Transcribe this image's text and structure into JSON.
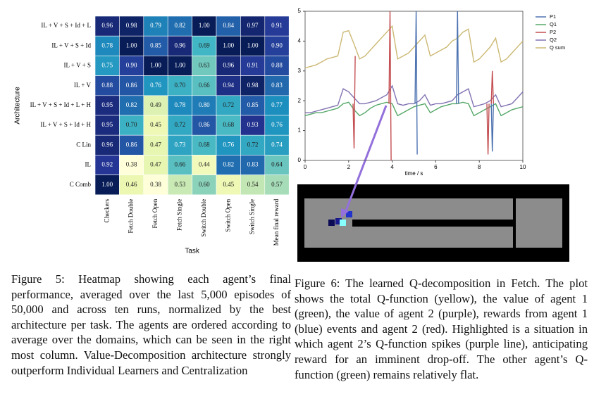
{
  "chart_data": [
    {
      "type": "heatmap",
      "y_label": "Architecture",
      "x_label": "Task",
      "colormap": "YlGnBu",
      "rows": [
        "IL + V + S + Id + L",
        "IL + V + S + Id",
        "IL + V + S",
        "IL + V",
        "IL + V + S + Id + L + H",
        "IL + V + S + Id + H",
        "C Lin",
        "IL",
        "C Comb"
      ],
      "columns": [
        "Checkers",
        "Fetch Double",
        "Fetch Open",
        "Fetch Single",
        "Switch Double",
        "Switch Open",
        "Switch Single",
        "Mean final reward"
      ],
      "values": [
        [
          0.96,
          0.98,
          0.79,
          0.82,
          1.0,
          0.84,
          0.97,
          0.91
        ],
        [
          0.78,
          1.0,
          0.85,
          0.96,
          0.69,
          1.0,
          1.0,
          0.9
        ],
        [
          0.75,
          0.9,
          1.0,
          1.0,
          0.63,
          0.96,
          0.91,
          0.88
        ],
        [
          0.88,
          0.86,
          0.76,
          0.7,
          0.66,
          0.94,
          0.98,
          0.83
        ],
        [
          0.95,
          0.82,
          0.49,
          0.78,
          0.8,
          0.72,
          0.85,
          0.77
        ],
        [
          0.95,
          0.7,
          0.45,
          0.72,
          0.86,
          0.68,
          0.93,
          0.76
        ],
        [
          0.96,
          0.86,
          0.47,
          0.73,
          0.68,
          0.76,
          0.72,
          0.74
        ],
        [
          0.92,
          0.38,
          0.47,
          0.66,
          0.44,
          0.82,
          0.83,
          0.64
        ],
        [
          1.0,
          0.46,
          0.38,
          0.53,
          0.6,
          0.45,
          0.54,
          0.57
        ]
      ],
      "value_labels": [
        [
          "0.96",
          "0.98",
          "0.79",
          "0.82",
          "1.00",
          "0.84",
          "0.97",
          "0.91"
        ],
        [
          "0.78",
          "1.00",
          "0.85",
          "0.96",
          "0.69",
          "1.00",
          "1.00",
          "0.90"
        ],
        [
          "0.75",
          "0.90",
          "1.00",
          "1.00",
          "0.63",
          "0.96",
          "0.91",
          "0.88"
        ],
        [
          "0.88",
          "0.86",
          "0.76",
          "0.70",
          "0.66",
          "0.94",
          "0.98",
          "0.83"
        ],
        [
          "0.95",
          "0.82",
          "0.49",
          "0.78",
          "0.80",
          "0.72",
          "0.85",
          "0.77"
        ],
        [
          "0.95",
          "0.70",
          "0.45",
          "0.72",
          "0.86",
          "0.68",
          "0.93",
          "0.76"
        ],
        [
          "0.96",
          "0.86",
          "0.47",
          "0.73",
          "0.68",
          "0.76",
          "0.72",
          "0.74"
        ],
        [
          "0.92",
          "0.38",
          "0.47",
          "0.66",
          "0.44",
          "0.82",
          "0.83",
          "0.64"
        ],
        [
          "1.00",
          "0.46",
          "0.38",
          "0.53",
          "0.60",
          "0.45",
          "0.54",
          "0.57"
        ]
      ]
    },
    {
      "type": "line",
      "x_label": "time / s",
      "xlim": [
        0,
        10
      ],
      "xticks": [
        0,
        2,
        4,
        6,
        8,
        10
      ],
      "ylim": [
        0,
        5
      ],
      "yticks": [
        0,
        1,
        2,
        3,
        4,
        5
      ],
      "series": [
        {
          "name": "P1",
          "color": "#4c72b0",
          "x": [
            5.05,
            5.1,
            5.15,
            5.2,
            6.95,
            7,
            7.05,
            7.1,
            8.55,
            8.6,
            8.65
          ],
          "values": [
            1.9,
            5,
            0.2,
            null,
            1.9,
            5,
            1.9,
            null,
            1.9,
            0.3,
            1.9
          ]
        },
        {
          "name": "Q1",
          "color": "#55a868",
          "x": [
            0,
            0.25,
            0.5,
            0.75,
            1,
            1.25,
            1.5,
            1.75,
            2,
            2.25,
            2.5,
            2.75,
            3,
            3.25,
            3.5,
            3.75,
            4,
            4.25,
            4.5,
            4.75,
            5,
            5.25,
            5.5,
            5.75,
            6,
            6.25,
            6.5,
            6.75,
            7,
            7.25,
            7.5,
            7.75,
            8,
            8.25,
            8.5,
            8.75,
            9,
            9.25,
            9.5,
            9.75,
            10
          ],
          "values": [
            1.5,
            1.55,
            1.6,
            1.6,
            1.65,
            1.7,
            1.75,
            1.9,
            1.95,
            1.7,
            1.5,
            1.6,
            1.75,
            1.85,
            1.9,
            1.95,
            1.9,
            1.5,
            1.6,
            1.7,
            1.8,
            1.85,
            1.9,
            1.6,
            1.7,
            1.8,
            1.85,
            1.9,
            1.9,
            1.95,
            1.9,
            1.5,
            1.6,
            1.7,
            1.8,
            1.9,
            1.5,
            1.6,
            1.7,
            1.75,
            1.8
          ]
        },
        {
          "name": "P2",
          "color": "#c44e52",
          "x": [
            2.2,
            2.25,
            2.3,
            2.35,
            3.85,
            3.9,
            3.95,
            4.0,
            8.35,
            8.4,
            8.45,
            8.5,
            8.55,
            8.6,
            8.65
          ],
          "values": [
            1.9,
            0.4,
            3.5,
            null,
            1.9,
            5,
            0,
            null,
            1.9,
            0.2,
            1.9,
            null,
            1.9,
            3,
            1.9
          ]
        },
        {
          "name": "Q2",
          "color": "#8172b2",
          "x": [
            0,
            0.25,
            0.5,
            0.75,
            1,
            1.25,
            1.5,
            1.75,
            2,
            2.25,
            2.5,
            2.75,
            3,
            3.25,
            3.5,
            3.75,
            4,
            4.25,
            4.5,
            4.75,
            5,
            5.25,
            5.5,
            5.75,
            6,
            6.25,
            6.5,
            6.75,
            7,
            7.25,
            7.5,
            7.75,
            8,
            8.25,
            8.5,
            8.75,
            9,
            9.25,
            9.5,
            9.75,
            10
          ],
          "values": [
            1.6,
            1.6,
            1.65,
            1.7,
            1.75,
            1.8,
            1.85,
            2.4,
            2.3,
            2.1,
            1.9,
            1.9,
            1.95,
            2.0,
            2.1,
            2.2,
            2.5,
            1.9,
            1.85,
            1.9,
            1.9,
            2.0,
            2.2,
            1.85,
            1.9,
            1.9,
            1.95,
            2.0,
            2.2,
            2.3,
            2.4,
            1.8,
            1.85,
            1.9,
            2.0,
            2.2,
            1.8,
            1.85,
            1.9,
            2.1,
            2.3
          ]
        },
        {
          "name": "Q sum",
          "color": "#ccb974",
          "x": [
            0,
            0.25,
            0.5,
            0.75,
            1,
            1.25,
            1.5,
            1.75,
            2,
            2.25,
            2.5,
            2.75,
            3,
            3.25,
            3.5,
            3.75,
            4,
            4.25,
            4.5,
            4.75,
            5,
            5.25,
            5.5,
            5.75,
            6,
            6.25,
            6.5,
            6.75,
            7,
            7.25,
            7.5,
            7.75,
            8,
            8.25,
            8.5,
            8.75,
            9,
            9.25,
            9.5,
            9.75,
            10
          ],
          "values": [
            3.1,
            3.15,
            3.2,
            3.3,
            3.4,
            3.45,
            3.5,
            4.3,
            4.35,
            3.9,
            3.4,
            3.5,
            3.7,
            3.9,
            4.1,
            4.3,
            4.5,
            3.4,
            3.5,
            3.6,
            3.8,
            4.0,
            4.2,
            3.5,
            3.6,
            3.7,
            3.8,
            4.0,
            4.1,
            4.3,
            4.4,
            3.3,
            3.4,
            3.6,
            3.8,
            4.1,
            3.3,
            3.4,
            3.6,
            3.8,
            4.0
          ]
        }
      ]
    }
  ],
  "captions": {
    "figure5": "Figure 5: Heatmap showing each agent’s final performance, averaged over the last 5,000 episodes of 50,000 and across ten runs, normalized by the best architecture per task. The agents are ordered according to average over the domains, which can be seen in the right most column. Value-Decomposition architecture strongly outperform Individual Learners and Centralization",
    "figure6": "Figure 6: The learned Q-decomposition in Fetch. The plot shows the total Q-function (yellow), the value of agent 1 (green), the value of agent 2 (purple), rewards from agent 1 (blue) events and agent 2 (red). Highlighted is a situation in which agent 2’s Q-function spikes (purple line), anticipating reward for an imminent drop-off. The other agent’s Q-function (green) remains relatively flat."
  }
}
